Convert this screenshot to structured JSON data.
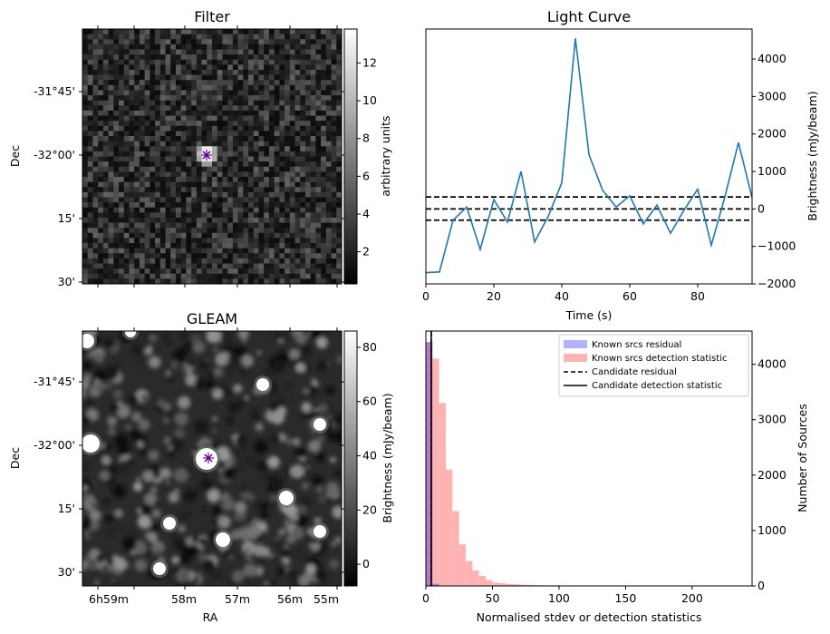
{
  "chart_data": [
    {
      "type": "heatmap",
      "title": "Filter",
      "xlabel": "",
      "ylabel": "Dec",
      "y_ticks": [
        "-31°45'",
        "-32°00'",
        "15'",
        "30'"
      ],
      "colorbar": {
        "label": "arbitrary units",
        "range": [
          0.3,
          13.8
        ],
        "ticks": [
          2,
          4,
          6,
          8,
          10,
          12
        ],
        "colormap": "gray"
      },
      "markers": [
        {
          "symbol": "x",
          "color": "#0000ff"
        },
        {
          "symbol": "+",
          "color": "#ff0000"
        }
      ]
    },
    {
      "type": "line",
      "title": "Light Curve",
      "xlabel": "Time (s)",
      "ylabel": "Brightness (mJy/beam)",
      "xlim": [
        0,
        96
      ],
      "ylim": [
        -2000,
        4800
      ],
      "x_ticks": [
        0,
        20,
        40,
        60,
        80
      ],
      "y_ticks": [
        -2000,
        -1000,
        0,
        1000,
        2000,
        3000,
        4000
      ],
      "y_axis_side": "right",
      "series": [
        {
          "color": "#1f77b4",
          "x": [
            0,
            4,
            8,
            12,
            16,
            20,
            24,
            28,
            32,
            36,
            40,
            44,
            48,
            52,
            56,
            60,
            64,
            68,
            72,
            76,
            80,
            84,
            88,
            92,
            96
          ],
          "y": [
            -1700,
            -1680,
            -300,
            50,
            -1080,
            250,
            -350,
            1000,
            -880,
            -200,
            700,
            4550,
            1450,
            500,
            50,
            350,
            -400,
            100,
            -650,
            -30,
            530,
            -970,
            320,
            1770,
            300
          ]
        }
      ],
      "hlines": [
        {
          "y": 320,
          "style": "dashed",
          "color": "#000000"
        },
        {
          "y": 0,
          "style": "dashed",
          "color": "#000000"
        },
        {
          "y": -300,
          "style": "dashed",
          "color": "#000000"
        }
      ]
    },
    {
      "type": "heatmap",
      "title": "GLEAM",
      "xlabel": "RA",
      "ylabel": "Dec",
      "x_ticks": [
        "6h59m",
        "58m",
        "57m",
        "56m",
        "55m"
      ],
      "y_ticks": [
        "-31°45'",
        "-32°00'",
        "15'",
        "30'"
      ],
      "colorbar": {
        "label": "Brightness (mJy/beam)",
        "range": [
          -8,
          86
        ],
        "ticks": [
          0,
          20,
          40,
          60,
          80
        ],
        "colormap": "gray"
      },
      "markers": [
        {
          "symbol": "x",
          "color": "#0000ff"
        },
        {
          "symbol": "+",
          "color": "#ff0000"
        }
      ]
    },
    {
      "type": "histogram",
      "title": "",
      "xlabel": "Normalised stdev or detection statistics",
      "ylabel": "Number of Sources",
      "xlim": [
        0,
        245
      ],
      "ylim": [
        0,
        4600
      ],
      "x_ticks": [
        0,
        50,
        100,
        150,
        200
      ],
      "y_ticks": [
        0,
        1000,
        2000,
        3000,
        4000
      ],
      "y_axis_side": "right",
      "legend": "top-right",
      "bin_width": 5,
      "series": [
        {
          "name": "Known srcs residual",
          "color": "#0000ff",
          "alpha": 0.3,
          "bin_start": [
            0,
            5,
            10
          ],
          "counts": [
            4400,
            40,
            5
          ]
        },
        {
          "name": "Known srcs detection statistic",
          "color": "#ff0000",
          "alpha": 0.3,
          "bin_start": [
            0,
            5,
            10,
            15,
            20,
            25,
            30,
            35,
            40,
            45,
            50,
            55,
            60,
            65,
            70,
            75,
            80,
            85,
            90,
            95,
            100,
            105,
            110,
            115,
            120,
            125,
            130,
            135,
            140,
            145,
            150,
            160,
            170,
            180,
            190,
            200,
            210,
            220,
            230
          ],
          "counts": [
            4400,
            4100,
            3300,
            2100,
            1350,
            750,
            450,
            280,
            180,
            110,
            60,
            50,
            35,
            30,
            25,
            20,
            15,
            12,
            10,
            10,
            8,
            8,
            6,
            6,
            5,
            5,
            4,
            4,
            3,
            3,
            3,
            2,
            2,
            2,
            1,
            1,
            1,
            1,
            1
          ]
        }
      ],
      "vlines": [
        {
          "name": "Candidate residual",
          "x": 4,
          "style": "dashed",
          "color": "#000000"
        },
        {
          "name": "Candidate detection statistic",
          "x": 4,
          "style": "solid",
          "color": "#000000"
        }
      ]
    }
  ]
}
